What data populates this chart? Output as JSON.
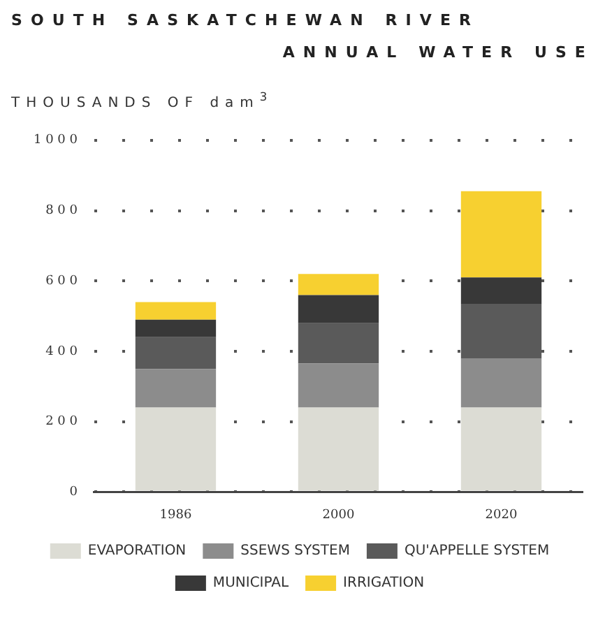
{
  "chart_data": {
    "type": "bar",
    "stacked": true,
    "title": "SOUTH SASKATCHEWAN RIVER",
    "subtitle": "ANNUAL WATER USE",
    "ylabel": "THOUSANDS OF dam$^{3}$",
    "categories": [
      "1986",
      "2000",
      "2020"
    ],
    "series": [
      {
        "name": "EVAPORATION",
        "color": "#dcdcd4",
        "values": [
          240,
          240,
          240
        ]
      },
      {
        "name": "SSEWS SYSTEM",
        "color": "#8c8c8c",
        "values": [
          110,
          125,
          140
        ]
      },
      {
        "name": "QU'APPELLE SYSTEM",
        "color": "#5a5a5a",
        "values": [
          90,
          115,
          155
        ]
      },
      {
        "name": "MUNICIPAL",
        "color": "#383838",
        "values": [
          50,
          80,
          75
        ]
      },
      {
        "name": "IRRIGATION",
        "color": "#f7d030",
        "values": [
          50,
          60,
          245
        ]
      }
    ],
    "ylim": [
      0,
      1000
    ],
    "yticks": [
      0,
      200,
      400,
      600,
      800,
      1000
    ],
    "grid": "y",
    "legend": "bottom"
  }
}
